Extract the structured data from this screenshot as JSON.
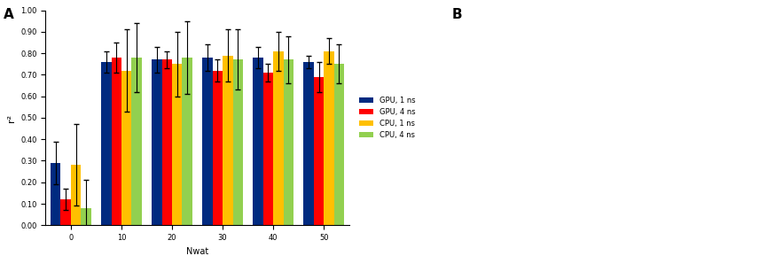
{
  "chart_data": {
    "type": "bar",
    "annotations": [
      "A",
      "B"
    ],
    "x_label": "Nwat",
    "y_label": "r²",
    "categories": [
      "0",
      "10",
      "20",
      "30",
      "40",
      "50"
    ],
    "series": [
      {
        "name": "GPU, 1 ns",
        "color": "#002a80",
        "values": [
          0.29,
          0.76,
          0.77,
          0.78,
          0.78,
          0.76
        ],
        "errors": [
          0.1,
          0.05,
          0.06,
          0.06,
          0.05,
          0.03
        ]
      },
      {
        "name": "GPU, 4 ns",
        "color": "#ff0000",
        "values": [
          0.12,
          0.78,
          0.77,
          0.72,
          0.71,
          0.69
        ],
        "errors": [
          0.05,
          0.07,
          0.04,
          0.05,
          0.04,
          0.07
        ]
      },
      {
        "name": "CPU, 1 ns",
        "color": "#ffc000",
        "values": [
          0.28,
          0.72,
          0.75,
          0.79,
          0.81,
          0.81
        ],
        "errors": [
          0.19,
          0.19,
          0.15,
          0.12,
          0.09,
          0.06
        ]
      },
      {
        "name": "CPU, 4 ns",
        "color": "#92d050",
        "values": [
          0.08,
          0.78,
          0.78,
          0.77,
          0.77,
          0.75
        ],
        "errors": [
          0.13,
          0.16,
          0.17,
          0.14,
          0.11,
          0.09
        ]
      }
    ],
    "ylim": [
      0,
      1
    ],
    "yticks": [
      {
        "value": 0,
        "label": "0.00"
      },
      {
        "value": 0.1,
        "label": "0.10"
      },
      {
        "value": 0.2,
        "label": "0.20"
      },
      {
        "value": 0.3,
        "label": "0.30"
      },
      {
        "value": 0.4,
        "label": "0.40"
      },
      {
        "value": 0.5,
        "label": "0.50"
      },
      {
        "value": 0.6,
        "label": "0.60"
      },
      {
        "value": 0.7,
        "label": "0.70"
      },
      {
        "value": 0.8,
        "label": "0.80"
      },
      {
        "value": 0.9,
        "label": "0.90"
      },
      {
        "value": 1,
        "label": "1.00"
      }
    ],
    "legend": "right",
    "grid": false
  }
}
